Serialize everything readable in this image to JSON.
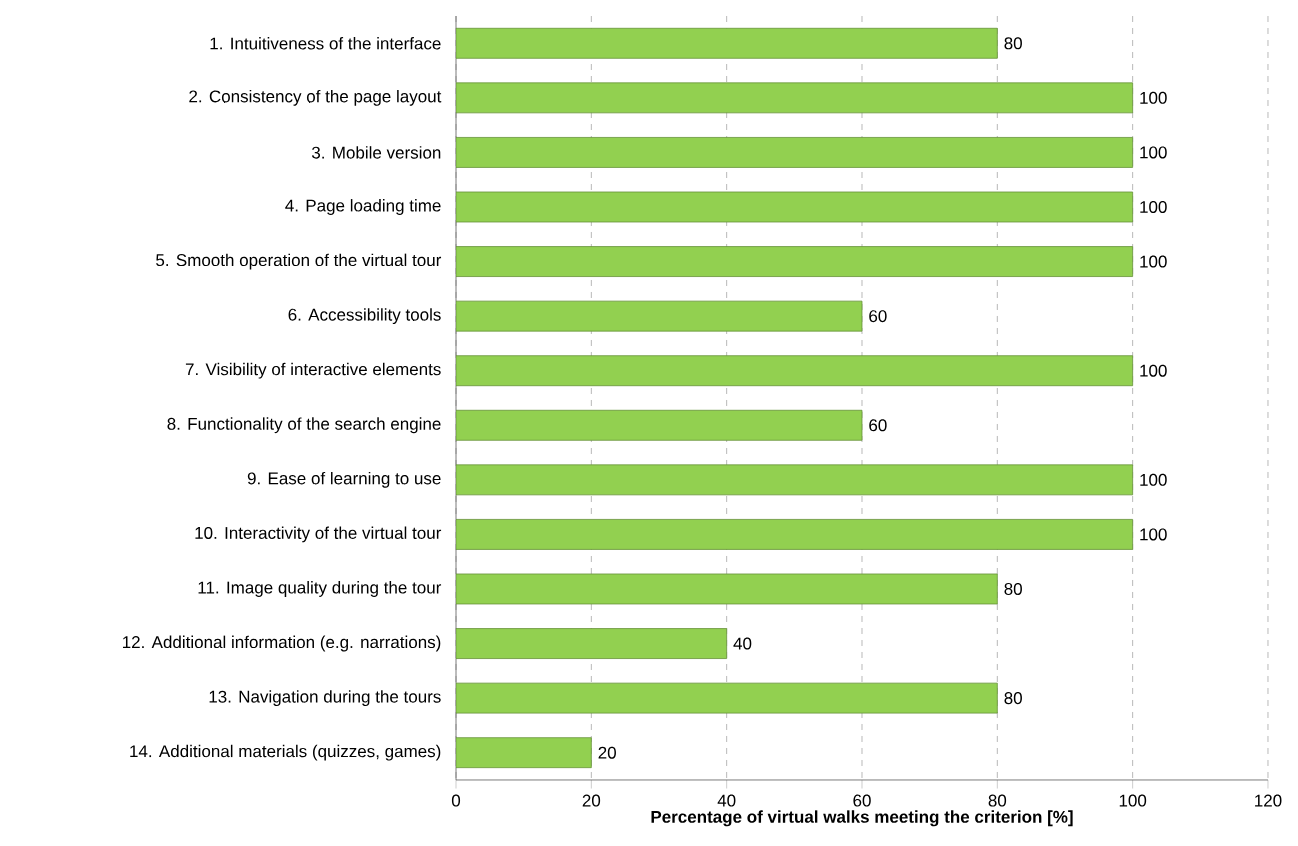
{
  "chart_data": {
    "type": "bar",
    "orientation": "horizontal",
    "xlabel": "Percentage of virtual walks meeting the criterion [%]",
    "categories": [
      "1. Intuitiveness of the interface",
      "2. Consistency of the page layout",
      "3. Mobile version",
      "4. Page loading time",
      "5. Smooth operation of the virtual tour",
      "6. Accessibility tools",
      "7. Visibility of interactive elements",
      "8. Functionality of the search engine",
      "9. Ease of learning to use",
      "10. Interactivity of the virtual tour",
      "11. Image quality during the tour",
      "12. Additional information (e.g. narrations)",
      "13. Navigation during the tours",
      "14. Additional materials (quizzes, games)"
    ],
    "values": [
      80,
      100,
      100,
      100,
      100,
      60,
      100,
      60,
      100,
      100,
      80,
      40,
      80,
      20
    ],
    "color": "#92d050",
    "xlim": [
      0,
      120
    ],
    "xticks": [
      0,
      20,
      40,
      60,
      80,
      100,
      120
    ],
    "grid": "x",
    "data_labels": true
  }
}
